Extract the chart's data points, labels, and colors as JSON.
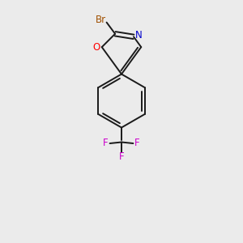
{
  "background_color": "#ebebeb",
  "bond_color": "#1a1a1a",
  "br_color": "#a05000",
  "o_color": "#ff0000",
  "n_color": "#0000cc",
  "f_color": "#cc00cc",
  "fig_size": [
    3.0,
    3.0
  ],
  "dpi": 100,
  "xlim": [
    0,
    10
  ],
  "ylim": [
    0,
    10
  ]
}
